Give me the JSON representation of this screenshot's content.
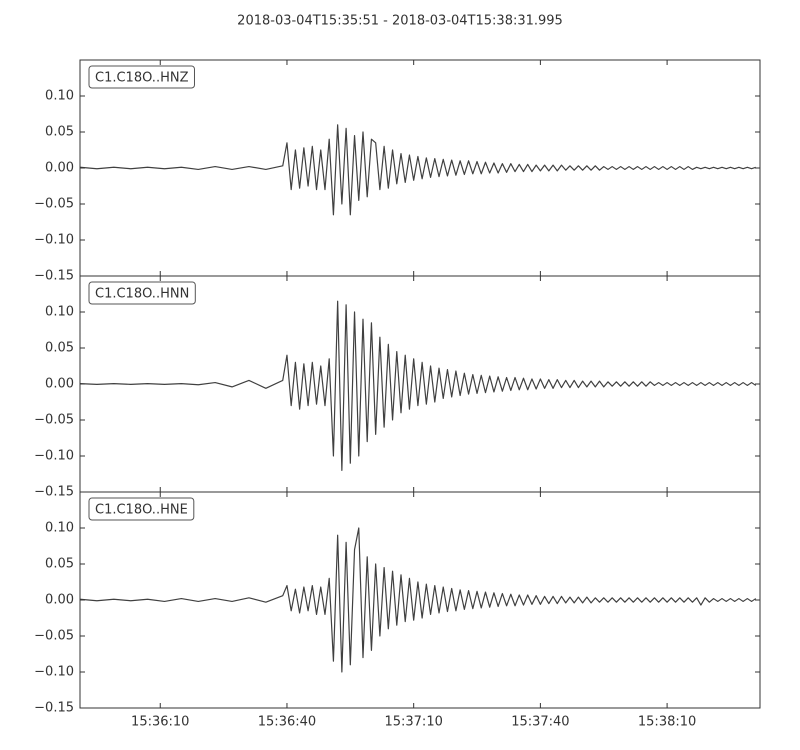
{
  "title": "2018-03-04T15:35:51  -  2018-03-04T15:38:31.995",
  "chart_data": [
    {
      "type": "line",
      "x": [
        0,
        4,
        8,
        12,
        16,
        20,
        24,
        28,
        32,
        36,
        40,
        44,
        48,
        49,
        50,
        51,
        52,
        53,
        54,
        55,
        56,
        57,
        58,
        59,
        60,
        61,
        62,
        63,
        64,
        65,
        66,
        67,
        68,
        69,
        70,
        71,
        72,
        73,
        74,
        75,
        76,
        77,
        78,
        79,
        80,
        81,
        82,
        83,
        84,
        85,
        86,
        87,
        88,
        89,
        90,
        91,
        92,
        93,
        94,
        95,
        96,
        97,
        98,
        99,
        100,
        101,
        102,
        103,
        104,
        105,
        106,
        107,
        108,
        109,
        110,
        111,
        112,
        113,
        114,
        115,
        116,
        117,
        118,
        119,
        120,
        121,
        122,
        123,
        124,
        125,
        126,
        127,
        128,
        129,
        130,
        131,
        132,
        133,
        134,
        135,
        136,
        137,
        138,
        139,
        140,
        141,
        142,
        143,
        144,
        145,
        146,
        147,
        148,
        149,
        150,
        151,
        152,
        153,
        154,
        155,
        156,
        157,
        158,
        159,
        160
      ],
      "series": [
        {
          "name": "C1.C18O..HNZ",
          "color": "#404040",
          "values": [
            0.001,
            -0.001,
            0.001,
            -0.001,
            0.001,
            -0.001,
            0.001,
            -0.002,
            0.002,
            -0.002,
            0.002,
            -0.002,
            0.003,
            0.035,
            -0.03,
            0.025,
            -0.028,
            0.028,
            -0.025,
            0.03,
            -0.03,
            0.025,
            -0.03,
            0.04,
            -0.065,
            0.06,
            -0.05,
            0.055,
            -0.065,
            0.045,
            -0.045,
            0.05,
            -0.04,
            0.04,
            0.035,
            -0.03,
            0.03,
            -0.028,
            0.025,
            -0.022,
            0.02,
            -0.02,
            0.018,
            -0.017,
            0.016,
            -0.015,
            0.014,
            -0.013,
            0.013,
            -0.012,
            0.012,
            -0.011,
            0.011,
            -0.01,
            0.01,
            -0.009,
            0.01,
            -0.008,
            0.009,
            -0.008,
            0.008,
            -0.007,
            0.007,
            -0.007,
            0.006,
            -0.006,
            0.006,
            -0.005,
            0.005,
            -0.005,
            0.005,
            -0.005,
            0.004,
            -0.004,
            0.004,
            -0.004,
            0.004,
            -0.004,
            0.004,
            -0.003,
            0.003,
            -0.003,
            0.003,
            -0.003,
            0.003,
            -0.003,
            0.003,
            -0.003,
            0.002,
            -0.002,
            0.002,
            -0.002,
            0.002,
            -0.002,
            0.002,
            -0.002,
            0.002,
            -0.002,
            0.002,
            -0.002,
            0.002,
            -0.002,
            0.002,
            -0.002,
            0.002,
            -0.002,
            0.002,
            -0.002,
            0.002,
            -0.002,
            0.001,
            -0.001,
            0.001,
            -0.001,
            0.001,
            -0.001,
            0.001,
            -0.001,
            0.001,
            -0.001,
            0.001,
            -0.001,
            0.001,
            -0.001,
            0.001
          ]
        }
      ],
      "xlim": [
        0,
        160.995
      ],
      "ylim": [
        -0.15,
        0.15
      ],
      "xticks": [
        19,
        49,
        79,
        109,
        139
      ],
      "yticks": [
        {
          "value": -0.15,
          "label": "−0.15"
        },
        {
          "value": -0.1,
          "label": "−0.10"
        },
        {
          "value": -0.05,
          "label": "−0.05"
        },
        {
          "value": 0,
          "label": "0.00"
        },
        {
          "value": 0.05,
          "label": "0.05"
        },
        {
          "value": 0.1,
          "label": "0.10"
        }
      ]
    },
    {
      "type": "line",
      "x": [
        0,
        4,
        8,
        12,
        16,
        20,
        24,
        28,
        32,
        36,
        40,
        44,
        48,
        49,
        50,
        51,
        52,
        53,
        54,
        55,
        56,
        57,
        58,
        59,
        60,
        61,
        62,
        63,
        64,
        65,
        66,
        67,
        68,
        69,
        70,
        71,
        72,
        73,
        74,
        75,
        76,
        77,
        78,
        79,
        80,
        81,
        82,
        83,
        84,
        85,
        86,
        87,
        88,
        89,
        90,
        91,
        92,
        93,
        94,
        95,
        96,
        97,
        98,
        99,
        100,
        101,
        102,
        103,
        104,
        105,
        106,
        107,
        108,
        109,
        110,
        111,
        112,
        113,
        114,
        115,
        116,
        117,
        118,
        119,
        120,
        121,
        122,
        123,
        124,
        125,
        126,
        127,
        128,
        129,
        130,
        131,
        132,
        133,
        134,
        135,
        136,
        137,
        138,
        139,
        140,
        141,
        142,
        143,
        144,
        145,
        146,
        147,
        148,
        149,
        150,
        151,
        152,
        153,
        154,
        155,
        156,
        157,
        158,
        159,
        160
      ],
      "series": [
        {
          "name": "C1.C18O..HNN",
          "color": "#404040",
          "values": [
            0.0005,
            -0.0005,
            0.0005,
            -0.0005,
            0.0005,
            -0.0005,
            0.0005,
            -0.001,
            0.002,
            -0.004,
            0.005,
            -0.006,
            0.005,
            0.04,
            -0.03,
            0.03,
            -0.035,
            0.028,
            -0.03,
            0.03,
            -0.028,
            0.025,
            -0.03,
            0.035,
            -0.1,
            0.115,
            -0.12,
            0.11,
            -0.11,
            0.1,
            -0.1,
            0.09,
            -0.08,
            0.085,
            -0.07,
            0.065,
            -0.06,
            0.055,
            -0.05,
            0.045,
            -0.04,
            0.04,
            -0.035,
            0.035,
            -0.03,
            0.03,
            -0.028,
            0.025,
            -0.025,
            0.022,
            -0.02,
            0.02,
            -0.018,
            0.018,
            -0.016,
            0.015,
            -0.014,
            0.013,
            -0.013,
            0.012,
            -0.012,
            0.011,
            -0.011,
            0.01,
            -0.01,
            0.009,
            -0.009,
            0.009,
            -0.008,
            0.008,
            -0.008,
            0.007,
            -0.007,
            0.007,
            -0.006,
            0.006,
            -0.006,
            0.006,
            -0.005,
            0.005,
            -0.005,
            0.005,
            -0.005,
            0.004,
            -0.004,
            0.004,
            -0.004,
            0.004,
            -0.004,
            0.003,
            -0.003,
            0.003,
            -0.003,
            0.003,
            -0.003,
            0.003,
            -0.003,
            0.003,
            -0.003,
            0.003,
            -0.002,
            0.002,
            -0.002,
            0.002,
            -0.002,
            0.002,
            -0.002,
            0.002,
            -0.002,
            0.002,
            -0.002,
            0.002,
            -0.002,
            0.002,
            -0.002,
            0.002,
            -0.002,
            0.002,
            -0.002,
            0.002,
            -0.002,
            0.002,
            -0.002,
            0.002,
            -0.002
          ]
        }
      ],
      "xlim": [
        0,
        160.995
      ],
      "ylim": [
        -0.15,
        0.15
      ],
      "xticks": [
        19,
        49,
        79,
        109,
        139
      ],
      "yticks": [
        {
          "value": -0.15,
          "label": "−0.15"
        },
        {
          "value": -0.1,
          "label": "−0.10"
        },
        {
          "value": -0.05,
          "label": "−0.05"
        },
        {
          "value": 0,
          "label": "0.00"
        },
        {
          "value": 0.05,
          "label": "0.05"
        },
        {
          "value": 0.1,
          "label": "0.10"
        }
      ]
    },
    {
      "type": "line",
      "x": [
        0,
        4,
        8,
        12,
        16,
        20,
        24,
        28,
        32,
        36,
        40,
        44,
        48,
        49,
        50,
        51,
        52,
        53,
        54,
        55,
        56,
        57,
        58,
        59,
        60,
        61,
        62,
        63,
        64,
        65,
        66,
        67,
        68,
        69,
        70,
        71,
        72,
        73,
        74,
        75,
        76,
        77,
        78,
        79,
        80,
        81,
        82,
        83,
        84,
        85,
        86,
        87,
        88,
        89,
        90,
        91,
        92,
        93,
        94,
        95,
        96,
        97,
        98,
        99,
        100,
        101,
        102,
        103,
        104,
        105,
        106,
        107,
        108,
        109,
        110,
        111,
        112,
        113,
        114,
        115,
        116,
        117,
        118,
        119,
        120,
        121,
        122,
        123,
        124,
        125,
        126,
        127,
        128,
        129,
        130,
        131,
        132,
        133,
        134,
        135,
        136,
        137,
        138,
        139,
        140,
        141,
        142,
        143,
        144,
        145,
        146,
        147,
        148,
        149,
        150,
        151,
        152,
        153,
        154,
        155,
        156,
        157,
        158,
        159,
        160
      ],
      "series": [
        {
          "name": "C1.C18O..HNE",
          "color": "#404040",
          "values": [
            0.001,
            -0.001,
            0.001,
            -0.001,
            0.001,
            -0.002,
            0.002,
            -0.002,
            0.002,
            -0.002,
            0.003,
            -0.003,
            0.006,
            0.02,
            -0.015,
            0.015,
            -0.018,
            0.018,
            -0.015,
            0.02,
            -0.02,
            0.018,
            -0.02,
            0.03,
            -0.085,
            0.09,
            -0.1,
            0.08,
            -0.09,
            0.07,
            0.1,
            -0.08,
            0.06,
            -0.07,
            0.05,
            -0.05,
            0.045,
            -0.04,
            0.04,
            -0.035,
            0.035,
            -0.03,
            0.03,
            -0.028,
            0.025,
            -0.025,
            0.022,
            -0.02,
            0.02,
            -0.018,
            0.018,
            -0.016,
            0.016,
            -0.015,
            0.014,
            -0.013,
            0.013,
            -0.012,
            0.012,
            -0.011,
            0.011,
            -0.01,
            0.01,
            -0.009,
            0.009,
            -0.008,
            0.008,
            -0.008,
            0.007,
            -0.007,
            0.007,
            -0.006,
            0.006,
            -0.006,
            0.005,
            -0.005,
            0.005,
            -0.005,
            0.005,
            -0.004,
            0.004,
            -0.004,
            0.004,
            -0.004,
            0.004,
            -0.004,
            0.003,
            -0.003,
            0.003,
            -0.003,
            0.003,
            -0.003,
            0.003,
            -0.003,
            0.003,
            -0.003,
            0.003,
            -0.003,
            0.003,
            -0.003,
            0.003,
            -0.003,
            0.003,
            -0.003,
            0.003,
            -0.003,
            0.003,
            -0.003,
            0.003,
            -0.003,
            0.003,
            -0.007,
            0.003,
            -0.003,
            0.002,
            -0.002,
            0.002,
            -0.002,
            0.002,
            -0.002,
            0.002,
            -0.002,
            0.002,
            -0.002,
            0.002
          ]
        }
      ],
      "xlim": [
        0,
        160.995
      ],
      "ylim": [
        -0.15,
        0.15
      ],
      "xticks": [
        {
          "value": 19,
          "label": "15:36:10"
        },
        {
          "value": 49,
          "label": "15:36:40"
        },
        {
          "value": 79,
          "label": "15:37:10"
        },
        {
          "value": 109,
          "label": "15:37:40"
        },
        {
          "value": 139,
          "label": "15:38:10"
        }
      ],
      "yticks": [
        {
          "value": -0.15,
          "label": "−0.15"
        },
        {
          "value": -0.1,
          "label": "−0.10"
        },
        {
          "value": -0.05,
          "label": "−0.05"
        },
        {
          "value": 0,
          "label": "0.00"
        },
        {
          "value": 0.05,
          "label": "0.05"
        },
        {
          "value": 0.1,
          "label": "0.10"
        }
      ]
    }
  ]
}
